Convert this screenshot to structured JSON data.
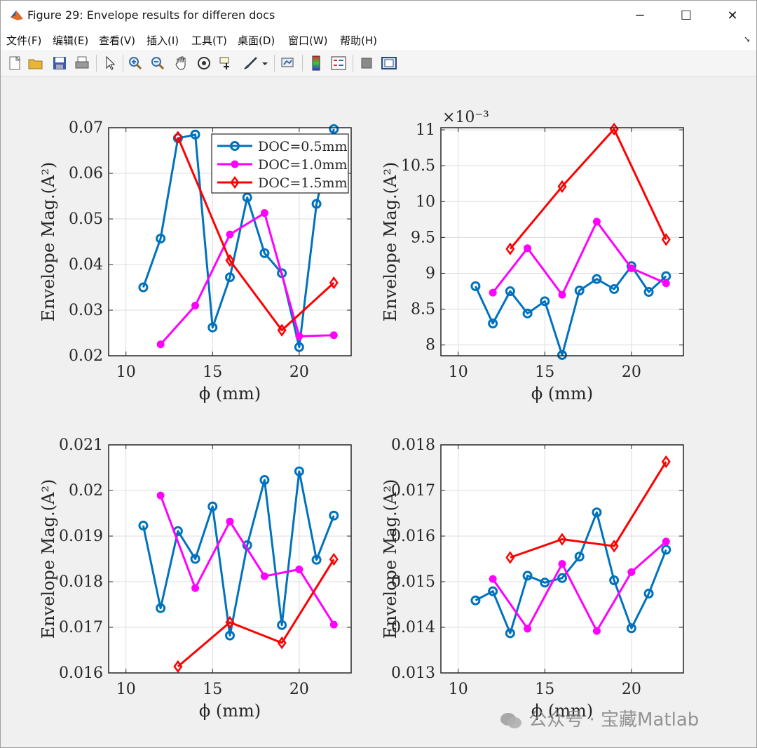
{
  "window": {
    "title": "Figure 29: Envelope results for differen docs",
    "menu": [
      "文件(F)",
      "编辑(E)",
      "查看(V)",
      "插入(I)",
      "工具(T)",
      "桌面(D)",
      "窗口(W)",
      "帮助(H)"
    ],
    "controls": {
      "minimize": "─",
      "maximize": "☐",
      "close": "✕"
    }
  },
  "toolbar": {
    "icons": [
      "new-figure-icon",
      "open-file-icon",
      "save-icon",
      "print-icon",
      "edit-plot-arrow-icon",
      "zoom-in-icon",
      "zoom-out-icon",
      "pan-hand-icon",
      "rotate-3d-icon",
      "data-cursor-icon",
      "brush-icon",
      "brush-dropdown-icon",
      "link-plot-icon",
      "colorbar-icon",
      "legend-icon",
      "hide-plot-tools-icon",
      "show-plot-tools-icon"
    ]
  },
  "watermark": "公众号 · 宝藏Matlab",
  "colors": {
    "doc05": "#0072BD",
    "doc10": "#FF00FF",
    "doc15": "#FF0000"
  },
  "chart_data": [
    {
      "type": "line",
      "xlabel": "ϕ (mm)",
      "ylabel": "Envelope Mag.(A²)",
      "xlim": [
        9,
        23
      ],
      "ylim": [
        0.02,
        0.07
      ],
      "xticks": [
        "10",
        "15",
        "20"
      ],
      "yticks": [
        "0.02",
        "0.03",
        "0.04",
        "0.05",
        "0.06",
        "0.07"
      ],
      "grid": true,
      "legend": {
        "placement": "top-right",
        "entries": [
          "DOC=0.5mm",
          "DOC=1.0mm",
          "DOC=1.5mm"
        ]
      },
      "series": [
        {
          "name": "DOC=0.5mm",
          "x": [
            11,
            12,
            13,
            14,
            15,
            16,
            17,
            18,
            19,
            20,
            21,
            22
          ],
          "y": [
            0.035,
            0.0457,
            0.0677,
            0.0685,
            0.0262,
            0.0372,
            0.0547,
            0.0425,
            0.0381,
            0.0219,
            0.0533,
            0.0697
          ]
        },
        {
          "name": "DOC=1.0mm",
          "x": [
            12,
            14,
            16,
            18,
            20,
            22
          ],
          "y": [
            0.0225,
            0.031,
            0.0466,
            0.0513,
            0.0243,
            0.0245
          ]
        },
        {
          "name": "DOC=1.5mm",
          "x": [
            13,
            16,
            19,
            22
          ],
          "y": [
            0.0679,
            0.0409,
            0.0256,
            0.036
          ]
        }
      ]
    },
    {
      "type": "line",
      "xlabel": "ϕ (mm)",
      "ylabel": "Envelope Mag.(A²)",
      "exponent": "×10⁻³",
      "xlim": [
        9,
        23
      ],
      "ylim": [
        7.85,
        11.03
      ],
      "xticks": [
        "10",
        "15",
        "20"
      ],
      "yticks": [
        "8",
        "8.5",
        "9",
        "9.5",
        "10",
        "10.5",
        "11"
      ],
      "grid": true,
      "series": [
        {
          "name": "DOC=0.5mm",
          "x": [
            11,
            12,
            13,
            14,
            15,
            16,
            17,
            18,
            19,
            20,
            21,
            22
          ],
          "y": [
            8.82,
            8.3,
            8.75,
            8.44,
            8.61,
            7.86,
            8.76,
            8.92,
            8.78,
            9.1,
            8.74,
            8.96
          ]
        },
        {
          "name": "DOC=1.0mm",
          "x": [
            12,
            14,
            16,
            18,
            20,
            22
          ],
          "y": [
            8.73,
            9.35,
            8.7,
            9.72,
            9.07,
            8.86
          ]
        },
        {
          "name": "DOC=1.5mm",
          "x": [
            13,
            16,
            19,
            22
          ],
          "y": [
            9.34,
            10.21,
            11.01,
            9.47
          ]
        }
      ]
    },
    {
      "type": "line",
      "xlabel": "ϕ (mm)",
      "ylabel": "Envelope Mag.(A²)",
      "xlim": [
        9,
        23
      ],
      "ylim": [
        0.016,
        0.021
      ],
      "xticks": [
        "10",
        "15",
        "20"
      ],
      "yticks": [
        "0.016",
        "0.017",
        "0.018",
        "0.019",
        "0.02",
        "0.021"
      ],
      "grid": true,
      "series": [
        {
          "name": "DOC=0.5mm",
          "x": [
            11,
            12,
            13,
            14,
            15,
            16,
            17,
            18,
            19,
            20,
            21,
            22
          ],
          "y": [
            0.01923,
            0.01742,
            0.01911,
            0.0185,
            0.01965,
            0.01682,
            0.0188,
            0.02023,
            0.01705,
            0.02042,
            0.01848,
            0.01945
          ]
        },
        {
          "name": "DOC=1.0mm",
          "x": [
            12,
            14,
            16,
            18,
            20,
            22
          ],
          "y": [
            0.01989,
            0.01786,
            0.01932,
            0.01812,
            0.01827,
            0.01706
          ]
        },
        {
          "name": "DOC=1.5mm",
          "x": [
            13,
            16,
            19,
            22
          ],
          "y": [
            0.01614,
            0.01711,
            0.01666,
            0.01849
          ]
        }
      ]
    },
    {
      "type": "line",
      "xlabel": "ϕ (mm)",
      "ylabel": "Envelope Mag.(A²)",
      "xlim": [
        9,
        23
      ],
      "ylim": [
        0.013,
        0.018
      ],
      "xticks": [
        "10",
        "15",
        "20"
      ],
      "yticks": [
        "0.013",
        "0.014",
        "0.015",
        "0.016",
        "0.017",
        "0.018"
      ],
      "grid": true,
      "series": [
        {
          "name": "DOC=0.5mm",
          "x": [
            11,
            12,
            13,
            14,
            15,
            16,
            17,
            18,
            19,
            20,
            21,
            22
          ],
          "y": [
            0.01459,
            0.01479,
            0.01387,
            0.01513,
            0.01498,
            0.01508,
            0.01555,
            0.01652,
            0.01503,
            0.01398,
            0.01474,
            0.0157
          ]
        },
        {
          "name": "DOC=1.0mm",
          "x": [
            12,
            14,
            16,
            18,
            20,
            22
          ],
          "y": [
            0.01506,
            0.01397,
            0.01539,
            0.01392,
            0.01521,
            0.01588
          ]
        },
        {
          "name": "DOC=1.5mm",
          "x": [
            13,
            16,
            19,
            22
          ],
          "y": [
            0.01553,
            0.01593,
            0.01578,
            0.01763
          ]
        }
      ]
    }
  ]
}
